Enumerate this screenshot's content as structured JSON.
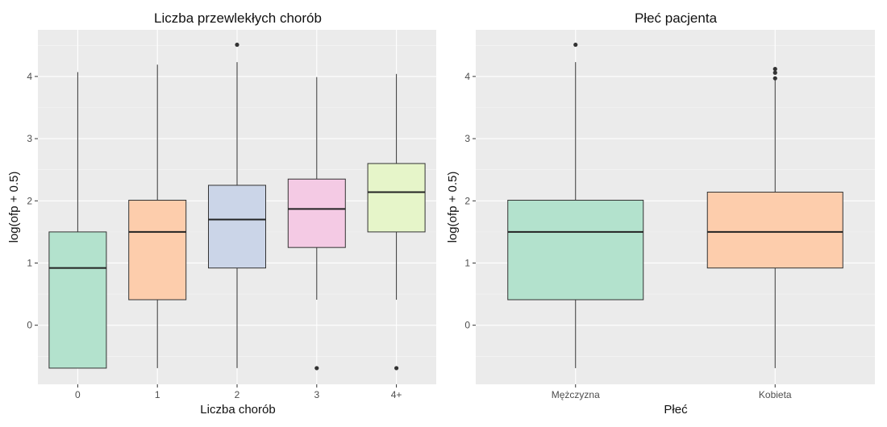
{
  "chart_data": [
    {
      "type": "box",
      "title": "Liczba przewlekłych chorób",
      "xlabel": "Liczba chorób",
      "ylabel": "log(ofp + 0.5)",
      "ylim": [
        -0.95,
        4.75
      ],
      "y_ticks": [
        0,
        1,
        2,
        3,
        4
      ],
      "grid": true,
      "categories": [
        "0",
        "1",
        "2",
        "3",
        "4+"
      ],
      "colors": [
        "#b3e2cd",
        "#fdcdac",
        "#cbd5e8",
        "#f4cae4",
        "#e6f5c9"
      ],
      "boxes": [
        {
          "category": "0",
          "whisker_low": -0.69,
          "q1": -0.69,
          "median": 0.92,
          "q3": 1.5,
          "whisker_high": 4.07,
          "outliers": []
        },
        {
          "category": "1",
          "whisker_low": -0.69,
          "q1": 0.41,
          "median": 1.5,
          "q3": 2.01,
          "whisker_high": 4.19,
          "outliers": []
        },
        {
          "category": "2",
          "whisker_low": -0.69,
          "q1": 0.92,
          "median": 1.7,
          "q3": 2.25,
          "whisker_high": 4.23,
          "outliers": [
            4.51
          ]
        },
        {
          "category": "3",
          "whisker_low": 0.41,
          "q1": 1.25,
          "median": 1.87,
          "q3": 2.35,
          "whisker_high": 3.99,
          "outliers": [
            -0.69
          ]
        },
        {
          "category": "4+",
          "whisker_low": 0.41,
          "q1": 1.5,
          "median": 2.14,
          "q3": 2.6,
          "whisker_high": 4.04,
          "outliers": [
            -0.69
          ]
        }
      ]
    },
    {
      "type": "box",
      "title": "Płeć pacjenta",
      "xlabel": "Płeć",
      "ylabel": "log(ofp + 0.5)",
      "ylim": [
        -0.95,
        4.75
      ],
      "y_ticks": [
        0,
        1,
        2,
        3,
        4
      ],
      "grid": true,
      "categories": [
        "Mężczyzna",
        "Kobieta"
      ],
      "colors": [
        "#b3e2cd",
        "#fdcdac"
      ],
      "boxes": [
        {
          "category": "Mężczyzna",
          "whisker_low": -0.69,
          "q1": 0.41,
          "median": 1.5,
          "q3": 2.01,
          "whisker_high": 4.23,
          "outliers": [
            4.51
          ]
        },
        {
          "category": "Kobieta",
          "whisker_low": -0.69,
          "q1": 0.92,
          "median": 1.5,
          "q3": 2.14,
          "whisker_high": 3.97,
          "outliers": [
            3.97,
            4.06,
            4.12
          ]
        }
      ]
    }
  ]
}
